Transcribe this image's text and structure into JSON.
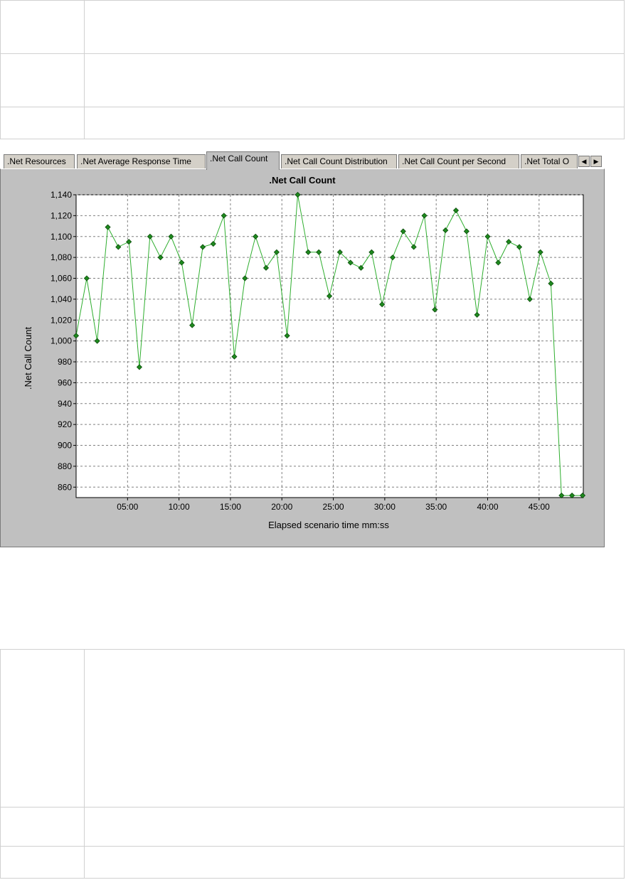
{
  "tabs": [
    {
      "label": ".Net Resources",
      "active": false
    },
    {
      "label": ".Net Average Response Time",
      "active": false
    },
    {
      "label": ".Net Call Count",
      "active": true
    },
    {
      "label": ".Net Call Count Distribution",
      "active": false
    },
    {
      "label": ".Net Call Count per Second",
      "active": false
    },
    {
      "label": ".Net Total O",
      "active": false
    }
  ],
  "scroll": {
    "left_icon": "arrow-left-icon",
    "right_icon": "arrow-right-icon"
  },
  "colors": {
    "line": "#2eae2e",
    "marker": "#1e8a1e",
    "panel": "#c0c0c0",
    "plot": "#ffffff"
  },
  "chart_data": {
    "type": "line",
    "title": ".Net Call Count",
    "xlabel": "Elapsed scenario time mm:ss",
    "ylabel": ".Net Call Count",
    "xlim_minutes": [
      0,
      49.3
    ],
    "ylim": [
      850,
      1140
    ],
    "y_ticks": [
      860,
      880,
      900,
      920,
      940,
      960,
      980,
      1000,
      1020,
      1040,
      1060,
      1080,
      1100,
      1120,
      1140
    ],
    "y_tick_labels": [
      "860",
      "880",
      "900",
      "920",
      "940",
      "960",
      "980",
      "1,000",
      "1,020",
      "1,040",
      "1,060",
      "1,080",
      "1,100",
      "1,120",
      "1,140"
    ],
    "x_ticks_minutes": [
      5,
      10,
      15,
      20,
      25,
      30,
      35,
      40,
      45
    ],
    "x_tick_labels": [
      "05:00",
      "10:00",
      "15:00",
      "20:00",
      "25:00",
      "30:00",
      "35:00",
      "40:00",
      "45:00"
    ],
    "grid": true,
    "series": [
      {
        "x": [
          0.0,
          1.03,
          2.05,
          3.08,
          4.1,
          5.13,
          6.15,
          7.18,
          8.2,
          9.23,
          10.26,
          11.28,
          12.31,
          13.33,
          14.36,
          15.38,
          16.41,
          17.44,
          18.46,
          19.49,
          20.51,
          21.54,
          22.56,
          23.59,
          24.62,
          25.64,
          26.67,
          27.69,
          28.72,
          29.74,
          30.77,
          31.79,
          32.82,
          33.85,
          34.87,
          35.9,
          36.92,
          37.95,
          38.97,
          40.0,
          41.03,
          42.05,
          43.08,
          44.1,
          45.13,
          46.15,
          47.18,
          48.2,
          49.23
        ],
        "y": [
          1005,
          1060,
          1000,
          1109,
          1090,
          1095,
          975,
          1100,
          1080,
          1100,
          1075,
          1015,
          1090,
          1093,
          1120,
          985,
          1060,
          1100,
          1070,
          1085,
          1005,
          1140,
          1085,
          1085,
          1043,
          1085,
          1075,
          1070,
          1085,
          1035,
          1080,
          1105,
          1090,
          1120,
          1030,
          1106,
          1125,
          1105,
          1025,
          1100,
          1075,
          1095,
          1090,
          1040,
          1085,
          1055,
          852,
          852,
          852
        ]
      }
    ]
  }
}
